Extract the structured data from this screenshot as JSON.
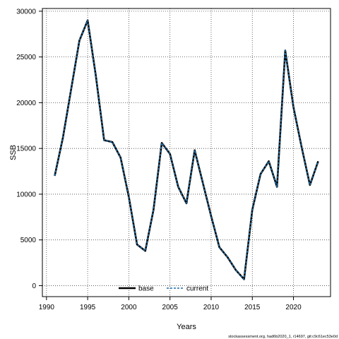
{
  "chart_data": {
    "type": "line",
    "xlabel": "Years",
    "ylabel": "SSB",
    "xlim": [
      1989.5,
      2024.5
    ],
    "ylim": [
      -1200,
      30300
    ],
    "xticks": [
      1990,
      1995,
      2000,
      2005,
      2010,
      2015,
      2020
    ],
    "yticks": [
      0,
      5000,
      10000,
      15000,
      20000,
      25000,
      30000
    ],
    "grid": true,
    "legend_position": "bottom",
    "colors": {
      "base": "#000000",
      "current": "#1f6fa8"
    },
    "x": [
      1991,
      1992,
      1993,
      1994,
      1995,
      1996,
      1997,
      1998,
      1999,
      2000,
      2001,
      2002,
      2003,
      2004,
      2005,
      2006,
      2007,
      2008,
      2009,
      2010,
      2011,
      2012,
      2013,
      2014,
      2015,
      2016,
      2017,
      2018,
      2019,
      2020,
      2021,
      2022,
      2023
    ],
    "series": [
      {
        "name": "base",
        "values": [
          12000,
          16200,
          21500,
          26800,
          29000,
          22900,
          15900,
          15700,
          14000,
          9700,
          4500,
          3800,
          8300,
          15600,
          14400,
          10800,
          9000,
          14800,
          11200,
          7600,
          4200,
          3100,
          1700,
          700,
          8300,
          12200,
          13600,
          10800,
          25700,
          19500,
          15100,
          11000,
          13600
        ]
      },
      {
        "name": "current",
        "values": [
          12000,
          16200,
          21500,
          26800,
          29000,
          22900,
          15900,
          15700,
          14000,
          9700,
          4500,
          3800,
          8300,
          15600,
          14400,
          10800,
          9000,
          14800,
          11200,
          7600,
          4200,
          3100,
          1700,
          700,
          8300,
          12200,
          13600,
          10800,
          25700,
          19500,
          15100,
          11000,
          13600
        ]
      }
    ]
  },
  "footer": "stockassessment.org, had6b2020_1, r14697, git:c9c61ec53e0d"
}
